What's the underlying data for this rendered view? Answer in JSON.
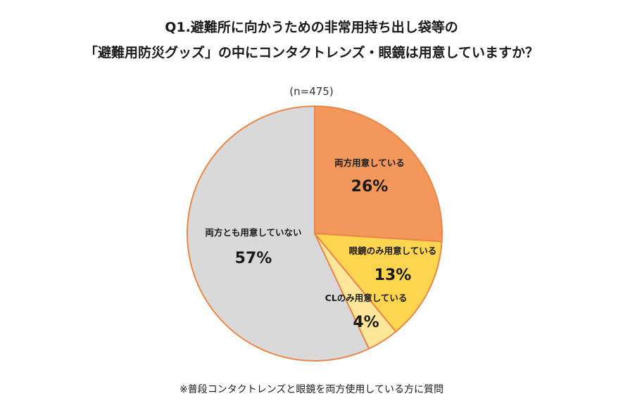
{
  "title": {
    "line1": "Q1.避難所に向かうための非常用持ち出し袋等の",
    "line2": "「避難用防災グッズ」の中にコンタクトレンズ・眼鏡は用意していますか？"
  },
  "sample_size": "(n=475)",
  "footnote": "※普段コンタクトレンズと眼鏡を両方使用している方に質問",
  "chart_data": {
    "type": "pie",
    "start": "12 o'clock, clockwise",
    "slices": [
      {
        "label": "両方用意している",
        "value": 26,
        "display": "26%",
        "color": "#f4975a"
      },
      {
        "label": "眼鏡のみ用意している",
        "value": 13,
        "display": "13%",
        "color": "#ffd54f"
      },
      {
        "label": "CLのみ用意している",
        "value": 4,
        "display": "4%",
        "color": "#ffe699"
      },
      {
        "label": "両方とも用意していない",
        "value": 57,
        "display": "57%",
        "color": "#d9d9d9"
      }
    ],
    "stroke_color": "#e8874a"
  }
}
